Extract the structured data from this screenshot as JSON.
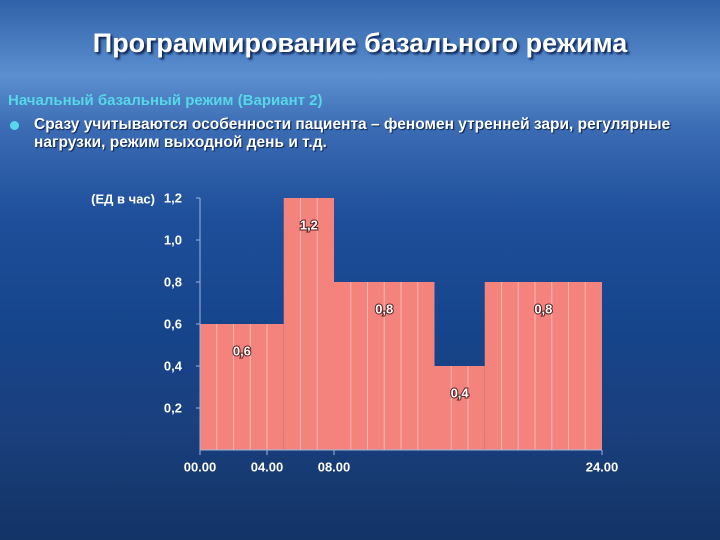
{
  "title": "Программирование базального режима",
  "subtitle": "Начальный базальный режим (Вариант 2)",
  "bullet": "Сразу учитываются особенности пациента – феномен утренней зари, регулярные нагрузки, режим выходной день и т.д.",
  "chart_data": {
    "type": "histogram",
    "y_label": "(ЕД в час)",
    "bins": [
      0,
      5,
      8,
      14,
      17,
      24
    ],
    "values": [
      0.6,
      1.2,
      0.8,
      0.4,
      0.8
    ],
    "value_labels": [
      "0,6",
      "1,2",
      "0,8",
      "0,4",
      "0,8"
    ],
    "color": "#f4837d",
    "xlim": [
      0,
      24
    ],
    "xticks": [
      {
        "value": 0,
        "label": "00.00"
      },
      {
        "value": 4,
        "label": "04.00"
      },
      {
        "value": 8,
        "label": "08.00"
      },
      {
        "value": 24,
        "label": "24.00"
      }
    ],
    "ylim": [
      0,
      1.2
    ],
    "yticks": [
      {
        "value": 0.2,
        "label": "0,2"
      },
      {
        "value": 0.4,
        "label": "0,4"
      },
      {
        "value": 0.6,
        "label": "0,6"
      },
      {
        "value": 0.8,
        "label": "0,8"
      },
      {
        "value": 1.0,
        "label": "1,0"
      },
      {
        "value": 1.2,
        "label": "1,2"
      }
    ]
  }
}
